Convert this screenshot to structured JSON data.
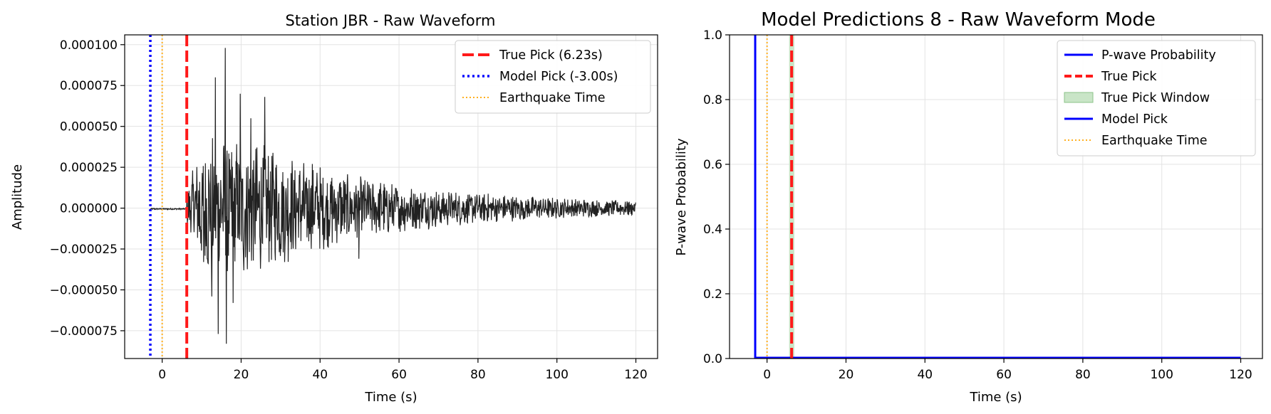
{
  "chart_data": [
    {
      "type": "line",
      "title": "Station JBR - Raw Waveform",
      "xlabel": "Time (s)",
      "ylabel": "Amplitude",
      "xlim": [
        -9.5,
        125.5
      ],
      "ylim": [
        -9.2e-05,
        0.000106
      ],
      "xticks": [
        0,
        20,
        40,
        60,
        80,
        100,
        120
      ],
      "yticks": [
        -7.5e-05,
        -5e-05,
        -2.5e-05,
        0,
        2.5e-05,
        5e-05,
        7.5e-05,
        0.0001
      ],
      "xtick_labels": [
        "0",
        "20",
        "40",
        "60",
        "80",
        "100",
        "120"
      ],
      "ytick_labels": [
        "−0.000075",
        "−0.000050",
        "−0.000025",
        "0.000000",
        "0.000025",
        "0.000050",
        "0.000075",
        "0.000100"
      ],
      "grid": true,
      "legend_position": "top-right",
      "waveform": {
        "color": "#222222",
        "t_start": -3.0,
        "t_end": 120.0,
        "onset": 6.23,
        "peaks": [
          {
            "t": 13.5,
            "v": 8e-05
          },
          {
            "t": 14.2,
            "v": -7.7e-05
          },
          {
            "t": 16.0,
            "v": 9.8e-05
          },
          {
            "t": 16.3,
            "v": -8.3e-05
          },
          {
            "t": 12.6,
            "v": -5.4e-05
          },
          {
            "t": 18.0,
            "v": -5.8e-05
          },
          {
            "t": 19.8,
            "v": 7e-05
          },
          {
            "t": 26.0,
            "v": 6.8e-05
          },
          {
            "t": 22.5,
            "v": 5.5e-05
          },
          {
            "t": 49.8,
            "v": -3.1e-05
          },
          {
            "t": 38.0,
            "v": 2.7e-05
          },
          {
            "t": 10.5,
            "v": -3.3e-05
          }
        ]
      },
      "vlines": [
        {
          "label": "True Pick (6.23s)",
          "x": 6.23,
          "color": "#ff1a1a",
          "style": "dashed"
        },
        {
          "label": "Model Pick (-3.00s)",
          "x": -3.0,
          "color": "#0000ff",
          "style": "dotted"
        },
        {
          "label": "Earthquake Time",
          "x": 0.0,
          "color": "#ffb020",
          "style": "dotted-thin"
        }
      ]
    },
    {
      "type": "line",
      "title": "Model Predictions 8 - Raw Waveform Mode",
      "xlabel": "Time (s)",
      "ylabel": "P-wave Probability",
      "xlim": [
        -9.5,
        125.5
      ],
      "ylim": [
        0,
        1.0
      ],
      "xticks": [
        0,
        20,
        40,
        60,
        80,
        100,
        120
      ],
      "yticks": [
        0,
        0.2,
        0.4,
        0.6,
        0.8,
        1.0
      ],
      "xtick_labels": [
        "0",
        "20",
        "40",
        "60",
        "80",
        "100",
        "120"
      ],
      "ytick_labels": [
        "0.0",
        "0.2",
        "0.4",
        "0.6",
        "0.8",
        "1.0"
      ],
      "grid": true,
      "legend_position": "top-right",
      "series": [
        {
          "name": "P-wave Probability",
          "x": [
            -3.0,
            120.0
          ],
          "y": [
            0.0,
            0.0
          ],
          "color": "#0000ff"
        }
      ],
      "window": {
        "label": "True Pick Window",
        "x0": 5.6,
        "x1": 6.9,
        "color": "#c9e5c7"
      },
      "vlines": [
        {
          "label": "True Pick",
          "x": 6.23,
          "color": "#ff1a1a",
          "style": "dashed"
        },
        {
          "label": "Model Pick",
          "x": -3.0,
          "color": "#0000ff",
          "style": "solid"
        },
        {
          "label": "Earthquake Time",
          "x": 0.0,
          "color": "#ffb020",
          "style": "dotted-thin"
        }
      ],
      "legend_order": [
        "P-wave Probability",
        "True Pick",
        "True Pick Window",
        "Model Pick",
        "Earthquake Time"
      ]
    }
  ]
}
